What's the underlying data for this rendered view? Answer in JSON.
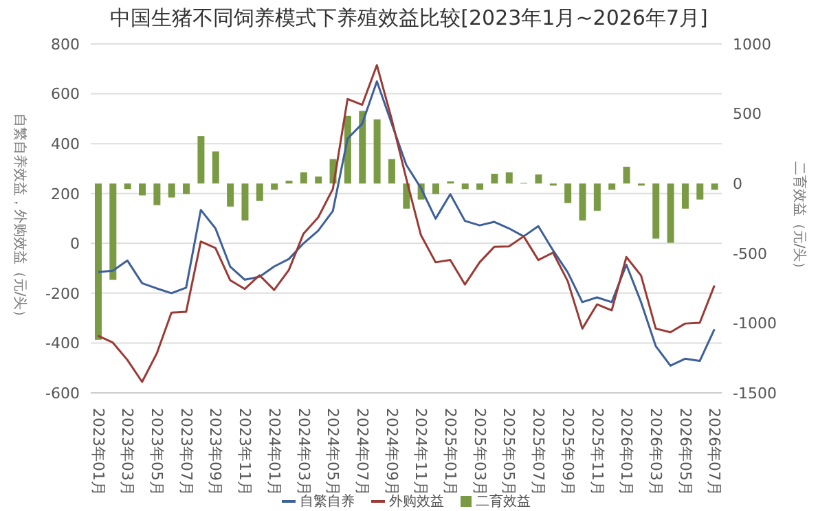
{
  "chart_data": {
    "type": "line",
    "title": "中国生猪不同饲养模式下养殖效益比较[2023年1月~2026年7月]",
    "ylabel": "自繁自养效益，外购效益（元/头）",
    "y2label": "二育效益（元/头）",
    "categories": [
      "2023年01月",
      null,
      "2023年03月",
      null,
      "2023年05月",
      null,
      "2023年07月",
      null,
      "2023年09月",
      null,
      "2023年11月",
      null,
      "2024年01月",
      null,
      "2024年03月",
      null,
      "2024年05月",
      null,
      "2024年07月",
      null,
      "2024年09月",
      null,
      "2024年11月",
      null,
      "2025年01月",
      null,
      "2025年03月",
      null,
      "2025年05月",
      null,
      "2025年07月",
      null,
      "2025年09月",
      null,
      "2025年11月",
      null,
      "2026年01月",
      null,
      "2026年03月",
      null,
      "2026年05月",
      null,
      "2026年07月"
    ],
    "series": [
      {
        "name": "自繁自养",
        "color": "#3d5f9a",
        "values": [
          -115,
          -110,
          -69,
          -160,
          -181,
          -200,
          -178,
          134,
          60,
          -93,
          -146,
          -134,
          -93,
          -63,
          0,
          51,
          130,
          420,
          480,
          650,
          482,
          315,
          222,
          99,
          197,
          90,
          72,
          86,
          60,
          28,
          69,
          -28,
          -116,
          -236,
          -217,
          -236,
          -86,
          -236,
          -412,
          -491,
          -463,
          -472,
          -345
        ]
      },
      {
        "name": "外购效益",
        "color": "#9b3a35",
        "values": [
          -371,
          -398,
          -468,
          -556,
          -442,
          -278,
          -275,
          7,
          -19,
          -148,
          -183,
          -128,
          -187,
          -107,
          39,
          104,
          218,
          579,
          556,
          715,
          500,
          260,
          33,
          -76,
          -67,
          -165,
          -76,
          -14,
          -12,
          28,
          -67,
          -37,
          -151,
          -342,
          -245,
          -269,
          -55,
          -129,
          -342,
          -357,
          -322,
          -319,
          -169
        ]
      },
      {
        "name": "二育效益",
        "type": "bar",
        "axis": "y2",
        "color": "#7a9a44",
        "values": [
          -1120,
          -690,
          -40,
          -85,
          -155,
          -100,
          -75,
          340,
          230,
          -165,
          -265,
          -125,
          -45,
          20,
          80,
          50,
          175,
          485,
          520,
          460,
          175,
          -180,
          -115,
          -75,
          15,
          -40,
          -45,
          70,
          80,
          5,
          65,
          -15,
          -140,
          -265,
          -195,
          -45,
          120,
          -15,
          -395,
          -425,
          -180,
          -115,
          -45
        ]
      }
    ],
    "ylim": [
      -600,
      800
    ],
    "yticks": [
      -600,
      -400,
      -200,
      0,
      200,
      400,
      600,
      800
    ],
    "y2lim": [
      -1500,
      1000
    ],
    "y2ticks": [
      -1500,
      -1000,
      -500,
      0,
      500,
      1000
    ],
    "grid": "y",
    "legend": "bottom",
    "marker": "none",
    "line_style": "solid"
  }
}
